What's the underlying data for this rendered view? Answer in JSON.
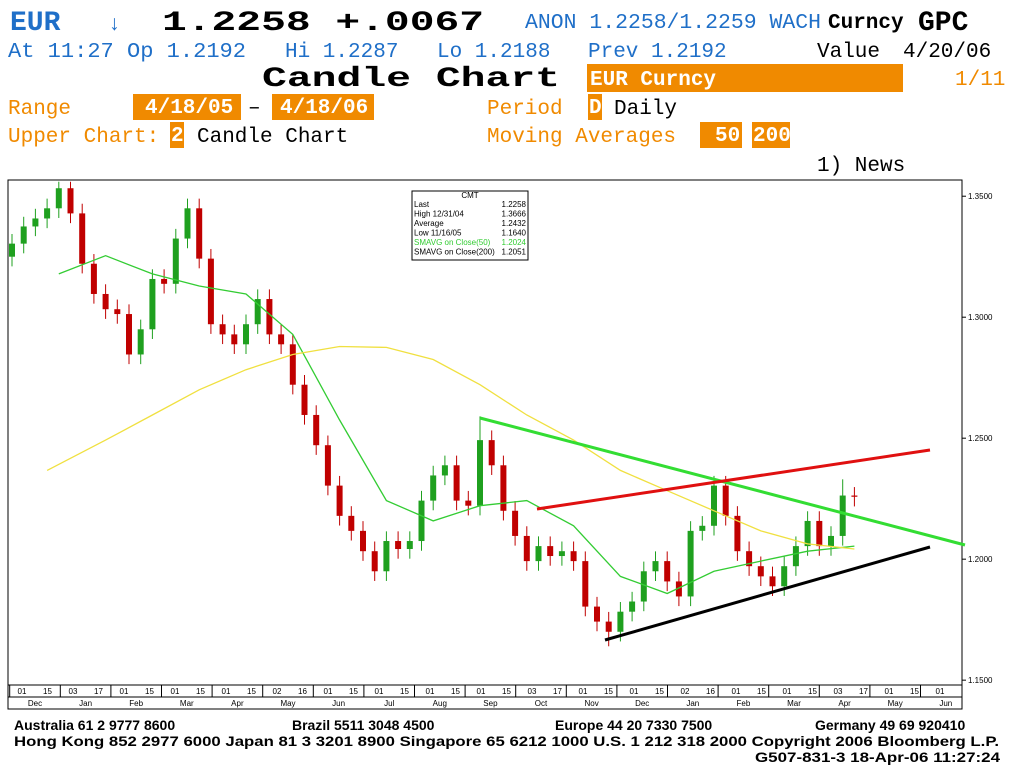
{
  "header": {
    "ticker": "EUR",
    "arrow": "↓",
    "price": "1.2258 +.0067",
    "quote": "ANON 1.2258/1.2259 WACH",
    "market": "Curncy",
    "function": "GPC",
    "at_open": "At 11:27 Op 1.2192",
    "hi": "Hi 1.2287",
    "lo": "Lo 1.2188",
    "prev": "Prev 1.2192",
    "value_label": "Value",
    "value_date": "4/20/06",
    "screen_title": "Candle Chart",
    "security": "EUR Curncy",
    "page": "1/11",
    "range_label": "Range",
    "range_start": "4/18/05",
    "range_dash": "–",
    "range_end": "4/18/06",
    "period_label": "Period",
    "period_code": "D",
    "period_name": "Daily",
    "upper_chart_label": "Upper Chart:",
    "upper_chart_code": "2",
    "upper_chart_name": "Candle Chart",
    "ma_label": "Moving Averages",
    "ma_short": "50",
    "ma_long": "200",
    "news": "1) News"
  },
  "footer": {
    "australia": "Australia 61 2 9777 8600",
    "brazil": "Brazil 5511 3048 4500",
    "europe": "Europe 44 20 7330 7500",
    "germany": "Germany 49 69 920410",
    "line2": "Hong Kong 852 2977 6000 Japan 81 3 3201 8900 Singapore 65 6212 1000 U.S. 1 212 318 2000 Copyright 2006 Bloomberg L.P.",
    "line3": "G507-831-3 18-Apr-06 11:27:24"
  },
  "chart_data": {
    "type": "candlestick",
    "up_color": "#1fa01f",
    "down_color": "#c00000",
    "ylim": [
      1.148,
      1.3567
    ],
    "yticks": [
      {
        "value": 1.15,
        "label": "1.1500"
      },
      {
        "value": 1.2,
        "label": "1.2000"
      },
      {
        "value": 1.25,
        "label": "1.2500"
      },
      {
        "value": 1.3,
        "label": "1.3000"
      },
      {
        "value": 1.35,
        "label": "1.3500"
      }
    ],
    "open": [
      1.325,
      1.3304,
      1.3375,
      1.3408,
      1.345,
      1.3533,
      1.3429,
      1.3221,
      1.3096,
      1.3033,
      1.3013,
      1.2846,
      1.295,
      1.3158,
      1.3138,
      1.3325,
      1.345,
      1.3242,
      1.2971,
      1.2929,
      1.2888,
      1.2971,
      1.3075,
      1.2929,
      1.2888,
      1.2721,
      1.2596,
      1.2471,
      1.2304,
      1.2179,
      1.2117,
      1.2033,
      1.195,
      1.2075,
      1.2042,
      1.2075,
      1.2242,
      1.2346,
      1.2388,
      1.2242,
      1.2221,
      1.2492,
      1.2388,
      1.22,
      1.2096,
      1.1992,
      1.2054,
      1.2013,
      1.2033,
      1.1992,
      1.1804,
      1.1742,
      1.17,
      1.1783,
      1.1825,
      1.195,
      1.1992,
      1.1908,
      1.1846,
      1.2117,
      1.2138,
      1.2304,
      1.2179,
      1.2033,
      1.1971,
      1.1929,
      1.1888,
      1.1971,
      1.2054,
      1.2158,
      1.2054,
      1.2096,
      1.2263
    ],
    "high": [
      1.3344,
      1.3415,
      1.3448,
      1.349,
      1.356,
      1.356,
      1.3469,
      1.3261,
      1.3136,
      1.3073,
      1.3053,
      1.299,
      1.3198,
      1.3198,
      1.3365,
      1.349,
      1.349,
      1.3282,
      1.3011,
      1.2969,
      1.3011,
      1.3115,
      1.3115,
      1.2969,
      1.2928,
      1.2761,
      1.2636,
      1.2511,
      1.2344,
      1.2219,
      1.2157,
      1.2073,
      1.2115,
      1.2115,
      1.2115,
      1.2282,
      1.2386,
      1.2428,
      1.2428,
      1.2282,
      1.259,
      1.2532,
      1.2428,
      1.224,
      1.2136,
      1.2094,
      1.2094,
      1.2073,
      1.2073,
      1.2032,
      1.1844,
      1.1782,
      1.1823,
      1.1865,
      1.199,
      1.2032,
      1.2032,
      1.1948,
      1.2157,
      1.2178,
      1.2344,
      1.2344,
      1.2219,
      1.2073,
      1.2011,
      1.1969,
      1.2011,
      1.2094,
      1.2198,
      1.2198,
      1.2136,
      1.233,
      1.2298
    ],
    "low": [
      1.321,
      1.3264,
      1.3335,
      1.3368,
      1.341,
      1.3389,
      1.3181,
      1.3056,
      1.2993,
      1.2973,
      1.2806,
      1.2806,
      1.291,
      1.3098,
      1.3098,
      1.3285,
      1.3202,
      1.2931,
      1.2889,
      1.2848,
      1.2848,
      1.2931,
      1.2889,
      1.2848,
      1.2681,
      1.2556,
      1.2431,
      1.2264,
      1.2139,
      1.2077,
      1.1993,
      1.191,
      1.191,
      1.2002,
      1.2002,
      1.2035,
      1.2202,
      1.2306,
      1.2202,
      1.2181,
      1.2181,
      1.2348,
      1.216,
      1.2056,
      1.1952,
      1.1952,
      1.1973,
      1.1973,
      1.1952,
      1.1764,
      1.1702,
      1.164,
      1.166,
      1.1743,
      1.1785,
      1.191,
      1.1868,
      1.1806,
      1.1806,
      1.2077,
      1.2098,
      1.2139,
      1.1993,
      1.1931,
      1.1889,
      1.1848,
      1.1848,
      1.1931,
      1.2014,
      1.2014,
      1.2014,
      1.2056,
      1.2218
    ],
    "close": [
      1.3304,
      1.3375,
      1.3408,
      1.345,
      1.3533,
      1.3429,
      1.3221,
      1.3096,
      1.3033,
      1.3013,
      1.2846,
      1.295,
      1.3158,
      1.3138,
      1.3325,
      1.345,
      1.3242,
      1.2971,
      1.2929,
      1.2888,
      1.2971,
      1.3075,
      1.2929,
      1.2888,
      1.2721,
      1.2596,
      1.2471,
      1.2304,
      1.2179,
      1.2117,
      1.2033,
      1.195,
      1.2075,
      1.2042,
      1.2075,
      1.2242,
      1.2346,
      1.2388,
      1.2242,
      1.2221,
      1.2492,
      1.2388,
      1.22,
      1.2096,
      1.1992,
      1.2054,
      1.2013,
      1.2033,
      1.1992,
      1.1804,
      1.1742,
      1.17,
      1.1783,
      1.1825,
      1.195,
      1.1992,
      1.1908,
      1.1846,
      1.2117,
      1.2138,
      1.2304,
      1.2179,
      1.2033,
      1.1971,
      1.1929,
      1.1888,
      1.1971,
      1.2054,
      1.2158,
      1.2054,
      1.2096,
      1.2263,
      1.2258
    ],
    "series": [
      {
        "name": "SMAVG on Close(50)",
        "color": "#33cc33",
        "x": [
          4,
          8,
          12,
          16,
          20,
          24,
          28,
          32,
          36,
          40,
          44,
          48,
          52,
          56,
          60,
          64,
          68,
          72
        ],
        "values": [
          1.3179,
          1.3254,
          1.3179,
          1.3129,
          1.3096,
          1.2929,
          1.2575,
          1.2242,
          1.2158,
          1.2221,
          1.2242,
          1.2138,
          1.1929,
          1.1858,
          1.195,
          1.1992,
          1.2033,
          1.2054
        ]
      },
      {
        "name": "SMAVG on Close(200)",
        "color": "#f0e040",
        "x": [
          3,
          8,
          12,
          16,
          20,
          24,
          28,
          32,
          36,
          40,
          44,
          48,
          52,
          56,
          60,
          64,
          68,
          72
        ],
        "values": [
          1.2367,
          1.2492,
          1.2596,
          1.27,
          1.2783,
          1.2846,
          1.2879,
          1.2875,
          1.2825,
          1.2721,
          1.2596,
          1.2492,
          1.2367,
          1.2283,
          1.22,
          1.2117,
          1.2063,
          1.2042
        ]
      }
    ],
    "legend": {
      "title": "CMT",
      "rows": [
        [
          "Last",
          "1.2258"
        ],
        [
          "High  12/31/04",
          "1.3666"
        ],
        [
          "Average",
          "1.2432"
        ],
        [
          "Low   11/16/05",
          "1.1640"
        ],
        [
          "SMAVG on Close(50)",
          "1.2024"
        ],
        [
          "SMAVG on Close(200)",
          "1.2051"
        ]
      ]
    },
    "day_ticks": [
      "01",
      "15",
      "03",
      "17",
      "01",
      "15",
      "01",
      "15",
      "01",
      "15",
      "02",
      "16",
      "01",
      "15",
      "01",
      "15",
      "01",
      "15",
      "01",
      "15",
      "03",
      "17",
      "01",
      "15",
      "01",
      "15",
      "02",
      "16",
      "01",
      "15",
      "01",
      "15",
      "03",
      "17",
      "01",
      "15",
      "01"
    ],
    "months": [
      "Dec",
      "Jan",
      "Feb",
      "Mar",
      "Apr",
      "May",
      "Jun",
      "Jul",
      "Aug",
      "Sep",
      "Oct",
      "Nov",
      "Dec",
      "Jan",
      "Feb",
      "Mar",
      "Apr",
      "May",
      "Jun"
    ]
  }
}
